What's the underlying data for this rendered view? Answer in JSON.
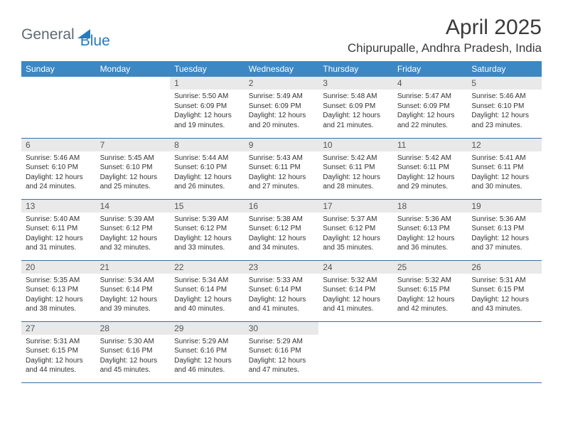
{
  "logo": {
    "part1": "General",
    "part2": "Blue"
  },
  "title": "April 2025",
  "location": "Chipurupalle, Andhra Pradesh, India",
  "colors": {
    "header_bg": "#3b88c4",
    "header_text": "#ffffff",
    "daynum_bg": "#e9e9e9",
    "row_border": "#3b6f9e",
    "logo_gray": "#5f6a72",
    "logo_blue": "#2a7ab8",
    "page_bg": "#ffffff"
  },
  "weekdays": [
    "Sunday",
    "Monday",
    "Tuesday",
    "Wednesday",
    "Thursday",
    "Friday",
    "Saturday"
  ],
  "weeks": [
    [
      {
        "empty": true
      },
      {
        "empty": true
      },
      {
        "n": "1",
        "sr": "5:50 AM",
        "ss": "6:09 PM",
        "dl": "12 hours and 19 minutes."
      },
      {
        "n": "2",
        "sr": "5:49 AM",
        "ss": "6:09 PM",
        "dl": "12 hours and 20 minutes."
      },
      {
        "n": "3",
        "sr": "5:48 AM",
        "ss": "6:09 PM",
        "dl": "12 hours and 21 minutes."
      },
      {
        "n": "4",
        "sr": "5:47 AM",
        "ss": "6:09 PM",
        "dl": "12 hours and 22 minutes."
      },
      {
        "n": "5",
        "sr": "5:46 AM",
        "ss": "6:10 PM",
        "dl": "12 hours and 23 minutes."
      }
    ],
    [
      {
        "n": "6",
        "sr": "5:46 AM",
        "ss": "6:10 PM",
        "dl": "12 hours and 24 minutes."
      },
      {
        "n": "7",
        "sr": "5:45 AM",
        "ss": "6:10 PM",
        "dl": "12 hours and 25 minutes."
      },
      {
        "n": "8",
        "sr": "5:44 AM",
        "ss": "6:10 PM",
        "dl": "12 hours and 26 minutes."
      },
      {
        "n": "9",
        "sr": "5:43 AM",
        "ss": "6:11 PM",
        "dl": "12 hours and 27 minutes."
      },
      {
        "n": "10",
        "sr": "5:42 AM",
        "ss": "6:11 PM",
        "dl": "12 hours and 28 minutes."
      },
      {
        "n": "11",
        "sr": "5:42 AM",
        "ss": "6:11 PM",
        "dl": "12 hours and 29 minutes."
      },
      {
        "n": "12",
        "sr": "5:41 AM",
        "ss": "6:11 PM",
        "dl": "12 hours and 30 minutes."
      }
    ],
    [
      {
        "n": "13",
        "sr": "5:40 AM",
        "ss": "6:11 PM",
        "dl": "12 hours and 31 minutes."
      },
      {
        "n": "14",
        "sr": "5:39 AM",
        "ss": "6:12 PM",
        "dl": "12 hours and 32 minutes."
      },
      {
        "n": "15",
        "sr": "5:39 AM",
        "ss": "6:12 PM",
        "dl": "12 hours and 33 minutes."
      },
      {
        "n": "16",
        "sr": "5:38 AM",
        "ss": "6:12 PM",
        "dl": "12 hours and 34 minutes."
      },
      {
        "n": "17",
        "sr": "5:37 AM",
        "ss": "6:12 PM",
        "dl": "12 hours and 35 minutes."
      },
      {
        "n": "18",
        "sr": "5:36 AM",
        "ss": "6:13 PM",
        "dl": "12 hours and 36 minutes."
      },
      {
        "n": "19",
        "sr": "5:36 AM",
        "ss": "6:13 PM",
        "dl": "12 hours and 37 minutes."
      }
    ],
    [
      {
        "n": "20",
        "sr": "5:35 AM",
        "ss": "6:13 PM",
        "dl": "12 hours and 38 minutes."
      },
      {
        "n": "21",
        "sr": "5:34 AM",
        "ss": "6:14 PM",
        "dl": "12 hours and 39 minutes."
      },
      {
        "n": "22",
        "sr": "5:34 AM",
        "ss": "6:14 PM",
        "dl": "12 hours and 40 minutes."
      },
      {
        "n": "23",
        "sr": "5:33 AM",
        "ss": "6:14 PM",
        "dl": "12 hours and 41 minutes."
      },
      {
        "n": "24",
        "sr": "5:32 AM",
        "ss": "6:14 PM",
        "dl": "12 hours and 41 minutes."
      },
      {
        "n": "25",
        "sr": "5:32 AM",
        "ss": "6:15 PM",
        "dl": "12 hours and 42 minutes."
      },
      {
        "n": "26",
        "sr": "5:31 AM",
        "ss": "6:15 PM",
        "dl": "12 hours and 43 minutes."
      }
    ],
    [
      {
        "n": "27",
        "sr": "5:31 AM",
        "ss": "6:15 PM",
        "dl": "12 hours and 44 minutes."
      },
      {
        "n": "28",
        "sr": "5:30 AM",
        "ss": "6:16 PM",
        "dl": "12 hours and 45 minutes."
      },
      {
        "n": "29",
        "sr": "5:29 AM",
        "ss": "6:16 PM",
        "dl": "12 hours and 46 minutes."
      },
      {
        "n": "30",
        "sr": "5:29 AM",
        "ss": "6:16 PM",
        "dl": "12 hours and 47 minutes."
      },
      {
        "empty": true
      },
      {
        "empty": true
      },
      {
        "empty": true
      }
    ]
  ],
  "labels": {
    "sunrise": "Sunrise:",
    "sunset": "Sunset:",
    "daylight": "Daylight:"
  }
}
